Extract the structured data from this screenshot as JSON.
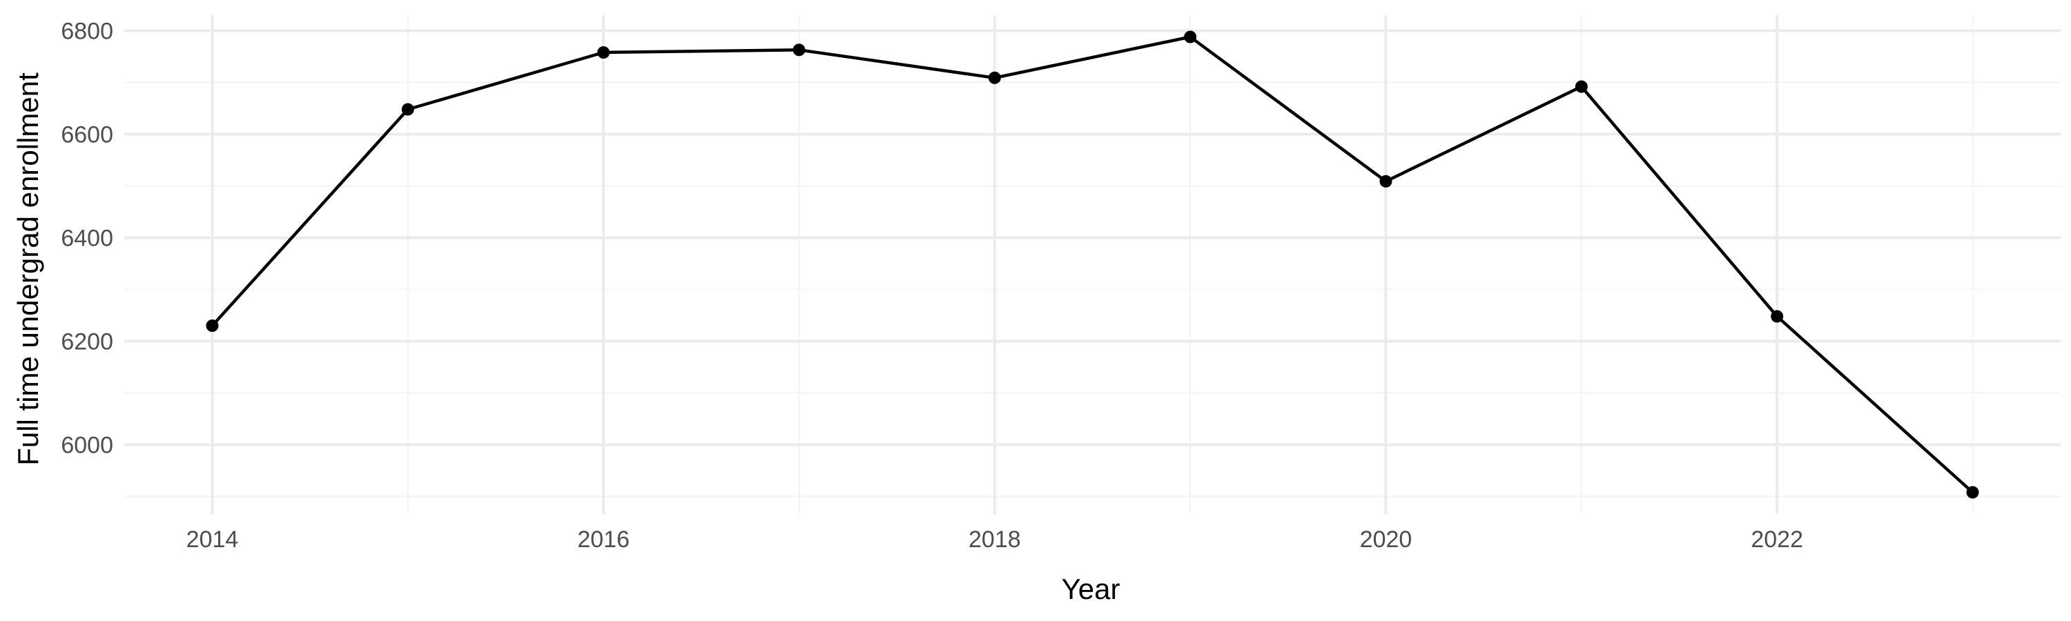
{
  "chart_data": {
    "type": "line",
    "title": "",
    "xlabel": "Year",
    "ylabel": "Full time undergrad enrollment",
    "x": [
      2014,
      2015,
      2016,
      2017,
      2018,
      2019,
      2020,
      2021,
      2022,
      2023
    ],
    "series": [
      {
        "values": [
          6230,
          6648,
          6758,
          6763,
          6709,
          6788,
          6509,
          6692,
          6248,
          5908
        ]
      }
    ],
    "xlim": [
      2013.55,
      2023.45
    ],
    "ylim": [
      5866,
      6830
    ],
    "x_ticks": [
      "2014",
      "2016",
      "2018",
      "2020",
      "2022"
    ],
    "y_ticks": [
      "6000",
      "6200",
      "6400",
      "6600",
      "6800"
    ],
    "x_tick_values": [
      2014,
      2016,
      2018,
      2020,
      2022
    ],
    "y_tick_values": [
      6000,
      6200,
      6400,
      6600,
      6800
    ],
    "x_minor": [
      2015,
      2017,
      2019,
      2021,
      2023
    ],
    "y_minor": [
      5900,
      6100,
      6300,
      6500,
      6700
    ],
    "grid": true,
    "legend": "none",
    "colors": {
      "line": "#000000",
      "point": "#000000",
      "grid": "#ebebeb",
      "background": "#ffffff"
    }
  }
}
